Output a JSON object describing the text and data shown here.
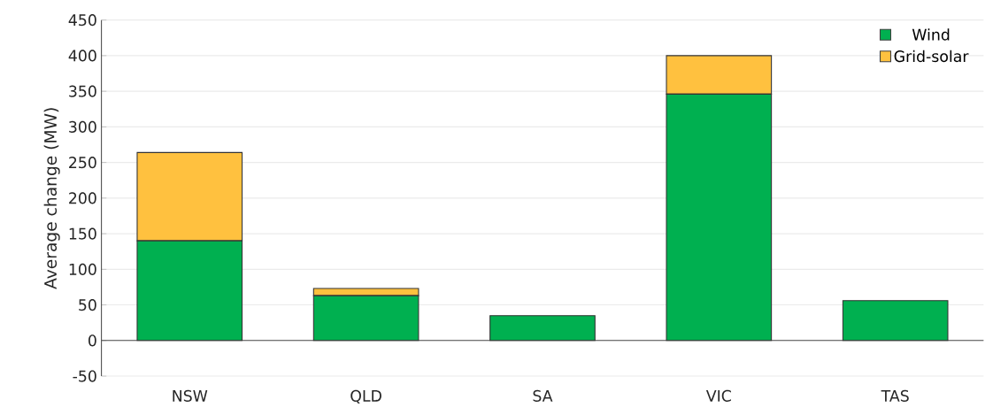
{
  "chart_data": {
    "type": "bar",
    "stacked": true,
    "ylabel": "Average change (MW)",
    "categories": [
      "NSW",
      "QLD",
      "SA",
      "VIC",
      "TAS"
    ],
    "series": [
      {
        "name": "Wind",
        "color": "#00b050",
        "values": [
          140,
          63,
          35,
          346,
          56
        ]
      },
      {
        "name": "Grid-solar",
        "color": "#ffc13f",
        "values": [
          124,
          10,
          0,
          54,
          0
        ]
      }
    ],
    "ylim": [
      -50,
      450
    ],
    "yticks": [
      -50,
      0,
      50,
      100,
      150,
      200,
      250,
      300,
      350,
      400,
      450
    ],
    "grid": "y",
    "legend": "top right"
  }
}
